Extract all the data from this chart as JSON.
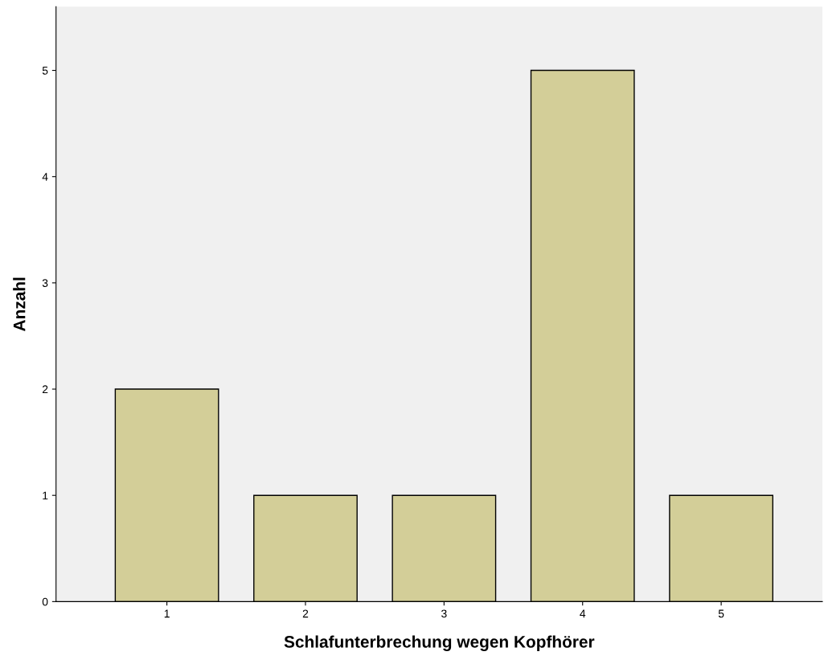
{
  "chart_data": {
    "type": "bar",
    "xlabel": "Schlafunterbrechung wegen Kopfhörer",
    "ylabel": "Anzahl",
    "categories": [
      "1",
      "2",
      "3",
      "4",
      "5"
    ],
    "values": [
      2,
      1,
      1,
      5,
      1
    ],
    "color": "#d3ce98",
    "ylim": [
      0,
      5.6
    ],
    "yticks": [
      0,
      1,
      2,
      3,
      4,
      5
    ],
    "grid": false,
    "legend": false
  }
}
